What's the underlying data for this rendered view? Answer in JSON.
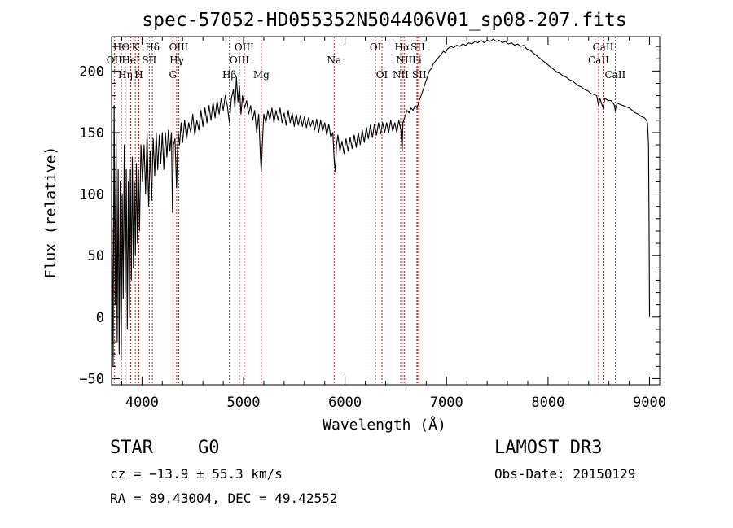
{
  "chart_data": {
    "type": "line",
    "title": "spec-57052-HD055352N504406V01_sp08-207.fits",
    "xlabel": "Wavelength (Å)",
    "ylabel": "Flux (relative)",
    "xlim": [
      3700,
      9100
    ],
    "ylim": [
      -55,
      228
    ],
    "x_ticks": [
      4000,
      5000,
      6000,
      7000,
      8000,
      9000
    ],
    "y_ticks": [
      -50,
      0,
      50,
      100,
      150,
      200
    ],
    "x_tick_labels": [
      "4000",
      "5000",
      "6000",
      "7000",
      "8000",
      "9000"
    ],
    "y_tick_labels": [
      "−50",
      "0",
      "50",
      "100",
      "150",
      "200"
    ],
    "series": [
      {
        "name": "flux",
        "color": "#000000",
        "points": [
          [
            3700,
            140
          ],
          [
            3715,
            -40
          ],
          [
            3725,
            172
          ],
          [
            3735,
            10
          ],
          [
            3745,
            150
          ],
          [
            3755,
            -20
          ],
          [
            3765,
            120
          ],
          [
            3775,
            -30
          ],
          [
            3785,
            110
          ],
          [
            3795,
            -35
          ],
          [
            3805,
            100
          ],
          [
            3815,
            15
          ],
          [
            3825,
            140
          ],
          [
            3835,
            20
          ],
          [
            3845,
            120
          ],
          [
            3855,
            -10
          ],
          [
            3865,
            110
          ],
          [
            3875,
            0
          ],
          [
            3885,
            120
          ],
          [
            3895,
            30
          ],
          [
            3905,
            130
          ],
          [
            3915,
            40
          ],
          [
            3925,
            110
          ],
          [
            3935,
            50
          ],
          [
            3945,
            125
          ],
          [
            3955,
            60
          ],
          [
            3965,
            120
          ],
          [
            3975,
            70
          ],
          [
            3990,
            140
          ],
          [
            4005,
            110
          ],
          [
            4020,
            140
          ],
          [
            4035,
            100
          ],
          [
            4050,
            150
          ],
          [
            4065,
            90
          ],
          [
            4080,
            135
          ],
          [
            4095,
            95
          ],
          [
            4110,
            145
          ],
          [
            4125,
            115
          ],
          [
            4140,
            150
          ],
          [
            4155,
            120
          ],
          [
            4170,
            148
          ],
          [
            4185,
            125
          ],
          [
            4200,
            150
          ],
          [
            4215,
            120
          ],
          [
            4230,
            150
          ],
          [
            4245,
            130
          ],
          [
            4260,
            152
          ],
          [
            4275,
            135
          ],
          [
            4290,
            150
          ],
          [
            4300,
            85
          ],
          [
            4310,
            140
          ],
          [
            4325,
            145
          ],
          [
            4340,
            105
          ],
          [
            4355,
            150
          ],
          [
            4370,
            140
          ],
          [
            4385,
            158
          ],
          [
            4400,
            142
          ],
          [
            4420,
            160
          ],
          [
            4440,
            145
          ],
          [
            4460,
            158
          ],
          [
            4480,
            150
          ],
          [
            4500,
            165
          ],
          [
            4520,
            148
          ],
          [
            4540,
            160
          ],
          [
            4560,
            152
          ],
          [
            4580,
            168
          ],
          [
            4600,
            155
          ],
          [
            4620,
            170
          ],
          [
            4640,
            158
          ],
          [
            4660,
            172
          ],
          [
            4680,
            160
          ],
          [
            4700,
            175
          ],
          [
            4720,
            162
          ],
          [
            4740,
            176
          ],
          [
            4760,
            165
          ],
          [
            4780,
            178
          ],
          [
            4800,
            168
          ],
          [
            4820,
            180
          ],
          [
            4840,
            172
          ],
          [
            4861,
            158
          ],
          [
            4880,
            178
          ],
          [
            4900,
            185
          ],
          [
            4915,
            170
          ],
          [
            4930,
            195
          ],
          [
            4945,
            175
          ],
          [
            4960,
            188
          ],
          [
            4975,
            165
          ],
          [
            4990,
            180
          ],
          [
            5010,
            170
          ],
          [
            5030,
            176
          ],
          [
            5050,
            165
          ],
          [
            5070,
            172
          ],
          [
            5090,
            160
          ],
          [
            5110,
            168
          ],
          [
            5130,
            150
          ],
          [
            5150,
            165
          ],
          [
            5167,
            130
          ],
          [
            5175,
            118
          ],
          [
            5185,
            140
          ],
          [
            5200,
            165
          ],
          [
            5220,
            158
          ],
          [
            5240,
            168
          ],
          [
            5260,
            160
          ],
          [
            5280,
            170
          ],
          [
            5300,
            158
          ],
          [
            5320,
            168
          ],
          [
            5340,
            160
          ],
          [
            5360,
            170
          ],
          [
            5380,
            158
          ],
          [
            5400,
            166
          ],
          [
            5420,
            156
          ],
          [
            5440,
            168
          ],
          [
            5460,
            158
          ],
          [
            5480,
            166
          ],
          [
            5500,
            155
          ],
          [
            5520,
            165
          ],
          [
            5540,
            156
          ],
          [
            5560,
            164
          ],
          [
            5580,
            155
          ],
          [
            5600,
            163
          ],
          [
            5620,
            154
          ],
          [
            5640,
            162
          ],
          [
            5660,
            155
          ],
          [
            5680,
            160
          ],
          [
            5700,
            152
          ],
          [
            5720,
            161
          ],
          [
            5740,
            150
          ],
          [
            5760,
            160
          ],
          [
            5780,
            151
          ],
          [
            5800,
            158
          ],
          [
            5820,
            148
          ],
          [
            5840,
            157
          ],
          [
            5860,
            146
          ],
          [
            5880,
            150
          ],
          [
            5895,
            125
          ],
          [
            5905,
            118
          ],
          [
            5915,
            140
          ],
          [
            5930,
            148
          ],
          [
            5950,
            135
          ],
          [
            5970,
            143
          ],
          [
            5990,
            133
          ],
          [
            6010,
            145
          ],
          [
            6030,
            135
          ],
          [
            6050,
            146
          ],
          [
            6070,
            137
          ],
          [
            6090,
            148
          ],
          [
            6110,
            138
          ],
          [
            6130,
            150
          ],
          [
            6150,
            140
          ],
          [
            6170,
            152
          ],
          [
            6190,
            142
          ],
          [
            6210,
            154
          ],
          [
            6230,
            145
          ],
          [
            6250,
            156
          ],
          [
            6270,
            146
          ],
          [
            6290,
            157
          ],
          [
            6310,
            148
          ],
          [
            6330,
            158
          ],
          [
            6350,
            149
          ],
          [
            6370,
            158
          ],
          [
            6390,
            150
          ],
          [
            6410,
            158
          ],
          [
            6430,
            150
          ],
          [
            6450,
            160
          ],
          [
            6470,
            151
          ],
          [
            6490,
            158
          ],
          [
            6510,
            150
          ],
          [
            6530,
            160
          ],
          [
            6550,
            152
          ],
          [
            6563,
            135
          ],
          [
            6570,
            158
          ],
          [
            6590,
            163
          ],
          [
            6610,
            168
          ],
          [
            6630,
            166
          ],
          [
            6650,
            170
          ],
          [
            6670,
            168
          ],
          [
            6690,
            172
          ],
          [
            6710,
            170
          ],
          [
            6730,
            176
          ],
          [
            6750,
            180
          ],
          [
            6770,
            185
          ],
          [
            6790,
            190
          ],
          [
            6810,
            195
          ],
          [
            6830,
            200
          ],
          [
            6850,
            202
          ],
          [
            6870,
            206
          ],
          [
            6890,
            208
          ],
          [
            6910,
            210
          ],
          [
            6930,
            212
          ],
          [
            6950,
            214
          ],
          [
            6970,
            216
          ],
          [
            6990,
            215
          ],
          [
            7010,
            218
          ],
          [
            7040,
            220
          ],
          [
            7070,
            219
          ],
          [
            7100,
            221
          ],
          [
            7130,
            220
          ],
          [
            7160,
            222
          ],
          [
            7190,
            221
          ],
          [
            7220,
            223
          ],
          [
            7250,
            222
          ],
          [
            7280,
            224
          ],
          [
            7310,
            223
          ],
          [
            7340,
            225
          ],
          [
            7370,
            223
          ],
          [
            7400,
            225
          ],
          [
            7430,
            224
          ],
          [
            7460,
            226
          ],
          [
            7490,
            224
          ],
          [
            7520,
            225
          ],
          [
            7550,
            223
          ],
          [
            7580,
            224
          ],
          [
            7610,
            222
          ],
          [
            7640,
            223
          ],
          [
            7670,
            221
          ],
          [
            7700,
            222
          ],
          [
            7730,
            220
          ],
          [
            7760,
            221
          ],
          [
            7790,
            218
          ],
          [
            7820,
            217
          ],
          [
            7850,
            215
          ],
          [
            7880,
            213
          ],
          [
            7910,
            211
          ],
          [
            7940,
            209
          ],
          [
            7970,
            207
          ],
          [
            8000,
            205
          ],
          [
            8030,
            203
          ],
          [
            8060,
            201
          ],
          [
            8090,
            199
          ],
          [
            8120,
            198
          ],
          [
            8150,
            196
          ],
          [
            8180,
            195
          ],
          [
            8210,
            193
          ],
          [
            8240,
            192
          ],
          [
            8270,
            190
          ],
          [
            8300,
            188
          ],
          [
            8330,
            187
          ],
          [
            8360,
            185
          ],
          [
            8390,
            184
          ],
          [
            8420,
            182
          ],
          [
            8450,
            181
          ],
          [
            8480,
            180
          ],
          [
            8498,
            172
          ],
          [
            8510,
            178
          ],
          [
            8542,
            170
          ],
          [
            8560,
            178
          ],
          [
            8590,
            176
          ],
          [
            8620,
            176
          ],
          [
            8650,
            173
          ],
          [
            8662,
            168
          ],
          [
            8680,
            174
          ],
          [
            8710,
            173
          ],
          [
            8740,
            172
          ],
          [
            8770,
            171
          ],
          [
            8800,
            170
          ],
          [
            8830,
            168
          ],
          [
            8860,
            166
          ],
          [
            8890,
            165
          ],
          [
            8920,
            163
          ],
          [
            8950,
            162
          ],
          [
            8970,
            160
          ],
          [
            8980,
            158
          ],
          [
            8990,
            140
          ],
          [
            8995,
            80
          ],
          [
            9000,
            0
          ]
        ]
      }
    ],
    "line_markers": [
      {
        "label": "HΘ",
        "x": 3797,
        "row": 0
      },
      {
        "label": "OII",
        "x": 3727,
        "row": 1
      },
      {
        "label": "Hη",
        "x": 3835,
        "row": 2
      },
      {
        "label": "HeI",
        "x": 3889,
        "row": 1
      },
      {
        "label": "K",
        "x": 3934,
        "row": 0
      },
      {
        "label": "H",
        "x": 3969,
        "row": 2
      },
      {
        "label": "SII",
        "x": 4072,
        "row": 1
      },
      {
        "label": "Hδ",
        "x": 4102,
        "row": 0
      },
      {
        "label": "G",
        "x": 4304,
        "row": 2
      },
      {
        "label": "OIII",
        "x": 4363,
        "row": 0
      },
      {
        "label": "Hγ",
        "x": 4341,
        "row": 1
      },
      {
        "label": "Hβ",
        "x": 4861,
        "row": 2
      },
      {
        "label": "OIII",
        "x": 4959,
        "row": 1
      },
      {
        "label": "OIII",
        "x": 5007,
        "row": 0
      },
      {
        "label": "Mg",
        "x": 5175,
        "row": 2
      },
      {
        "label": "Na",
        "x": 5893,
        "row": 1
      },
      {
        "label": "OI",
        "x": 6300,
        "row": 0
      },
      {
        "label": "OI",
        "x": 6364,
        "row": 2
      },
      {
        "label": "NII",
        "x": 6548,
        "row": 2
      },
      {
        "label": "NII",
        "x": 6583,
        "row": 1
      },
      {
        "label": "Hα",
        "x": 6563,
        "row": 0
      },
      {
        "label": "Li",
        "x": 6708,
        "row": 1
      },
      {
        "label": "SII",
        "x": 6717,
        "row": 0
      },
      {
        "label": "SII",
        "x": 6731,
        "row": 2
      },
      {
        "label": "CaII",
        "x": 8498,
        "row": 1
      },
      {
        "label": "CaII",
        "x": 8542,
        "row": 0
      },
      {
        "label": "CaII",
        "x": 8662,
        "row": 2
      }
    ]
  },
  "info": {
    "object_type": "STAR",
    "subclass": "G0",
    "survey": "LAMOST DR3",
    "cz": "cz = −13.9 ± 55.3 km/s",
    "obs_date": "Obs-Date: 20150129",
    "coords": "RA =  89.43004, DEC =  49.42552"
  }
}
